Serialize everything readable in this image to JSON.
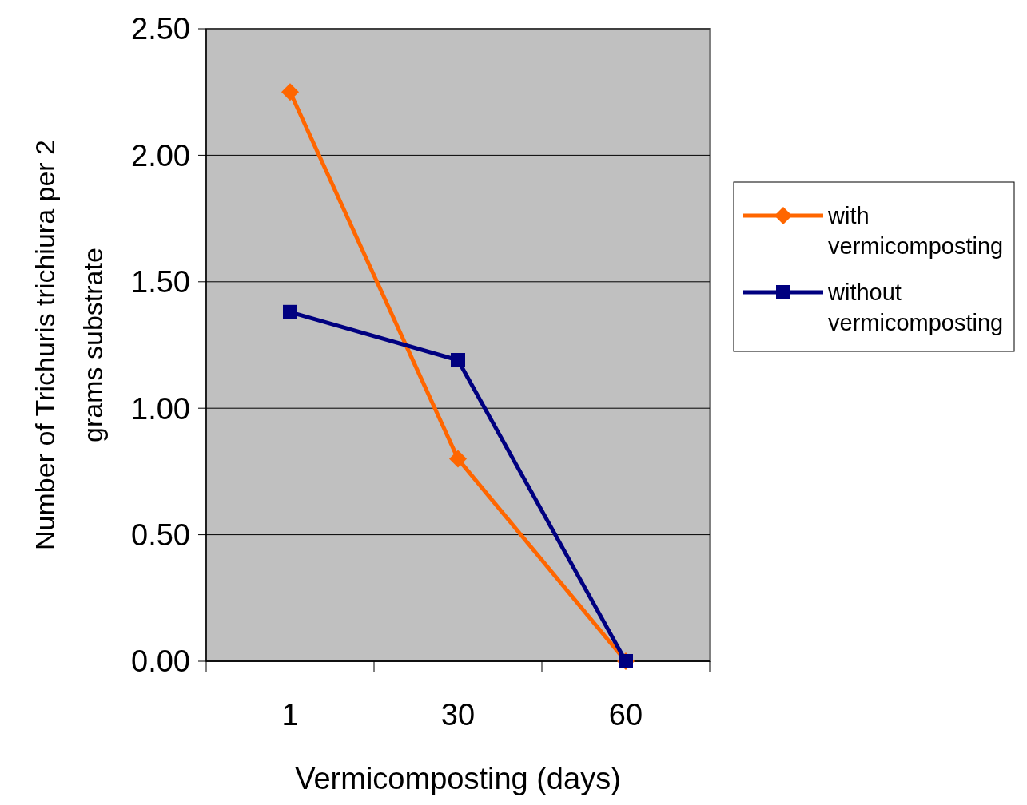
{
  "chart_data": {
    "type": "line",
    "xlabel": "Vermicomposting (days)",
    "ylabel": "Number of Trichuris trichiura per 2 grams substrate",
    "categories": [
      "1",
      "30",
      "60"
    ],
    "series": [
      {
        "name": "with vermicomposting",
        "color": "#ff6600",
        "values": [
          2.25,
          0.8,
          0
        ],
        "marker": "diamond"
      },
      {
        "name": "without vermicomposting",
        "color": "#000080",
        "values": [
          1.38,
          1.19,
          0
        ],
        "marker": "square"
      }
    ],
    "ylim": [
      0,
      2.5
    ],
    "yticks": [
      {
        "value": 0,
        "label": "0.00"
      },
      {
        "value": 0.5,
        "label": "0.50"
      },
      {
        "value": 1,
        "label": "1.00"
      },
      {
        "value": 1.5,
        "label": "1.50"
      },
      {
        "value": 2,
        "label": "2.00"
      },
      {
        "value": 2.5,
        "label": "2.50"
      }
    ],
    "grid": "y",
    "legend": "right",
    "line_style": "solid"
  }
}
